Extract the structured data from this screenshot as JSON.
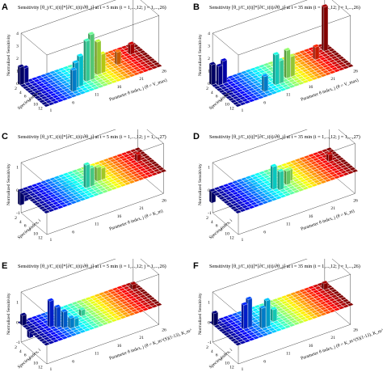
{
  "figure": {
    "panels": [
      {
        "letter": "A",
        "title": "Sensitivity [θ_j/C_i(t)]*[∂C_i(t)/∂θ_j] at t = 5 min (i = 1,...,12; j = 1,...,26)",
        "xlabel": "Parameter θ index, j (θ = V_max)",
        "ylabel": "Species index, i",
        "zlabel": "Normalized Sensitivity",
        "param_ticks": [
          "1",
          "6",
          "11",
          "16",
          "21",
          "26"
        ],
        "species_ticks": [
          "2",
          "4",
          "6",
          "8",
          "10",
          "12"
        ],
        "z_ticks": [
          "0",
          "1",
          "2",
          "3",
          "4"
        ]
      },
      {
        "letter": "B",
        "title": "Sensitivity [θ_j/C_i(t)]*[∂C_i(t)/∂θ_j] at t = 35 min (i = 1,...,12; j = 1,...,26)",
        "xlabel": "Parameter θ index, j (θ = V_max)",
        "ylabel": "Species index, i",
        "zlabel": "Normalized Sensitivity",
        "param_ticks": [
          "1",
          "6",
          "11",
          "16",
          "21",
          "26"
        ],
        "species_ticks": [
          "2",
          "4",
          "6",
          "8",
          "10",
          "12"
        ],
        "z_ticks": [
          "0",
          "1",
          "2",
          "3",
          "4"
        ]
      },
      {
        "letter": "C",
        "title": "Sensitivity [θ_j/C_i(t)]*[∂C_i(t)/∂θ_j] at t = 5 min (i = 1,...,12; j = 1,...,27)",
        "xlabel": "Parameter θ index, j (θ = K_m)",
        "ylabel": "Species index, i",
        "zlabel": "Normalized Sensitivity",
        "param_ticks": [
          "1",
          "6",
          "11",
          "16",
          "21",
          "26"
        ],
        "species_ticks": [
          "2",
          "4",
          "6",
          "8",
          "10",
          "12"
        ],
        "z_ticks": [
          "-1",
          "0",
          "1"
        ]
      },
      {
        "letter": "D",
        "title": "Sensitivity [θ_j/C_i(t)]*[∂C_i(t)/∂θ_j] at t = 35 min (i = 1,...,12; j = 1,...,27)",
        "xlabel": "Parameter θ index, j (θ = K_m)",
        "ylabel": "Species index, i",
        "zlabel": "Normalized Sensitivity",
        "param_ticks": [
          "1",
          "6",
          "11",
          "16",
          "21",
          "26"
        ],
        "species_ticks": [
          "2",
          "4",
          "6",
          "8",
          "10",
          "12"
        ],
        "z_ticks": [
          "-1",
          "0",
          "1"
        ]
      },
      {
        "letter": "E",
        "title": "Sensitivity [θ_j/C_i(t)]*[∂C_i(t)/∂θ_j] at t = 5 min (i = 1,...,12; j = 1,...,26)",
        "xlabel": "Parameter θ index, j (θ = K_m^(S)(1-13), K_m^(P)(14-24), V_max(25), Q_max(26))",
        "ylabel": "Species index, i",
        "zlabel": "Normalized Sensitivity",
        "param_ticks": [
          "1",
          "6",
          "11",
          "16",
          "21",
          "26"
        ],
        "species_ticks": [
          "2",
          "4",
          "6",
          "8",
          "10",
          "12"
        ],
        "z_ticks": [
          "-1",
          "0",
          "1"
        ]
      },
      {
        "letter": "F",
        "title": "Sensitivity [θ_j/C_i(t)]*[∂C_i(t)/∂θ_j] at t = 35 min (i = 1,...,12; j = 1,...,26)",
        "xlabel": "Parameter θ index, j (θ = K_m^(S)(1-13), K_m^(P)(14-24), V_max(25), Q_max(26))",
        "ylabel": "Species index, i",
        "zlabel": "Normalized Sensitivity",
        "param_ticks": [
          "1",
          "6",
          "11",
          "16",
          "21",
          "26"
        ],
        "species_ticks": [
          "2",
          "4",
          "6",
          "8",
          "10",
          "12"
        ],
        "z_ticks": [
          "-1",
          "0",
          "1"
        ]
      }
    ]
  },
  "chart_data": [
    {
      "type": "bar3d",
      "panel": "A",
      "zlim": [
        0,
        4
      ],
      "n_param": 26,
      "n_species": 12,
      "base_value": 0.0,
      "peaks": [
        {
          "j": 1,
          "i": 1,
          "value": 1.4
        },
        {
          "j": 2,
          "i": 1,
          "value": 1.2
        },
        {
          "j": 8,
          "i": 10,
          "value": 1.7
        },
        {
          "j": 9,
          "i": 9,
          "value": 2.0
        },
        {
          "j": 10,
          "i": 9,
          "value": 2.4
        },
        {
          "j": 12,
          "i": 8,
          "value": 3.2
        },
        {
          "j": 13,
          "i": 8,
          "value": 3.6
        },
        {
          "j": 15,
          "i": 7,
          "value": 2.6
        },
        {
          "j": 16,
          "i": 7,
          "value": 1.5
        },
        {
          "j": 20,
          "i": 6,
          "value": 1.0
        },
        {
          "j": 24,
          "i": 4,
          "value": 0.8
        }
      ]
    },
    {
      "type": "bar3d",
      "panel": "B",
      "zlim": [
        0,
        4
      ],
      "n_param": 26,
      "n_species": 12,
      "base_value": 0.0,
      "peaks": [
        {
          "j": 1,
          "i": 1,
          "value": 1.6
        },
        {
          "j": 2,
          "i": 2,
          "value": 1.5
        },
        {
          "j": 3,
          "i": 2,
          "value": 1.8
        },
        {
          "j": 8,
          "i": 10,
          "value": 1.2
        },
        {
          "j": 11,
          "i": 9,
          "value": 2.4
        },
        {
          "j": 12,
          "i": 9,
          "value": 1.8
        },
        {
          "j": 14,
          "i": 8,
          "value": 2.2
        },
        {
          "j": 15,
          "i": 8,
          "value": 1.6
        },
        {
          "j": 22,
          "i": 5,
          "value": 1.0
        },
        {
          "j": 25,
          "i": 3,
          "value": 3.5
        }
      ]
    },
    {
      "type": "bar3d",
      "panel": "C",
      "zlim": [
        -1,
        1.2
      ],
      "n_param": 27,
      "n_species": 12,
      "base_value": 0.0,
      "peaks": [
        {
          "j": 1,
          "i": 1,
          "value": -0.6
        },
        {
          "j": 2,
          "i": 1,
          "value": -0.5
        },
        {
          "j": 12,
          "i": 8,
          "value": 1.0
        },
        {
          "j": 13,
          "i": 8,
          "value": 0.8
        },
        {
          "j": 15,
          "i": 7,
          "value": 0.6
        },
        {
          "j": 16,
          "i": 7,
          "value": 0.5
        },
        {
          "j": 10,
          "i": 3,
          "value": -0.4
        },
        {
          "j": 11,
          "i": 4,
          "value": -0.4
        },
        {
          "j": 25,
          "i": 5,
          "value": 0.3
        }
      ]
    },
    {
      "type": "bar3d",
      "panel": "D",
      "zlim": [
        -1,
        1.2
      ],
      "n_param": 27,
      "n_species": 12,
      "base_value": 0.0,
      "peaks": [
        {
          "j": 1,
          "i": 1,
          "value": -0.5
        },
        {
          "j": 11,
          "i": 8,
          "value": 1.0
        },
        {
          "j": 12,
          "i": 9,
          "value": 0.8
        },
        {
          "j": 14,
          "i": 8,
          "value": 0.6
        },
        {
          "j": 15,
          "i": 7,
          "value": 0.5
        },
        {
          "j": 9,
          "i": 3,
          "value": -0.4
        },
        {
          "j": 25,
          "i": 5,
          "value": 0.3
        }
      ]
    },
    {
      "type": "bar3d",
      "panel": "E",
      "zlim": [
        -1,
        1.5
      ],
      "n_param": 26,
      "n_species": 12,
      "base_value": 0.0,
      "peaks": [
        {
          "j": 1,
          "i": 2,
          "value": 0.5
        },
        {
          "j": 2,
          "i": 3,
          "value": -0.6
        },
        {
          "j": 5,
          "i": 6,
          "value": 1.3
        },
        {
          "j": 6,
          "i": 7,
          "value": 1.0
        },
        {
          "j": 7,
          "i": 8,
          "value": 0.8
        },
        {
          "j": 8,
          "i": 9,
          "value": 0.5
        },
        {
          "j": 9,
          "i": 9,
          "value": 0.4
        },
        {
          "j": 12,
          "i": 6,
          "value": 0.3
        },
        {
          "j": 25,
          "i": 3,
          "value": 0.25
        }
      ]
    },
    {
      "type": "bar3d",
      "panel": "F",
      "zlim": [
        -1,
        1.5
      ],
      "n_param": 26,
      "n_species": 12,
      "base_value": 0.0,
      "peaks": [
        {
          "j": 1,
          "i": 2,
          "value": 0.6
        },
        {
          "j": 3,
          "i": 3,
          "value": -0.5
        },
        {
          "j": 5,
          "i": 7,
          "value": 1.2
        },
        {
          "j": 6,
          "i": 7,
          "value": 1.4
        },
        {
          "j": 8,
          "i": 9,
          "value": 1.0
        },
        {
          "j": 9,
          "i": 9,
          "value": 1.3
        },
        {
          "j": 11,
          "i": 8,
          "value": 0.6
        },
        {
          "j": 25,
          "i": 3,
          "value": 0.3
        }
      ]
    }
  ]
}
